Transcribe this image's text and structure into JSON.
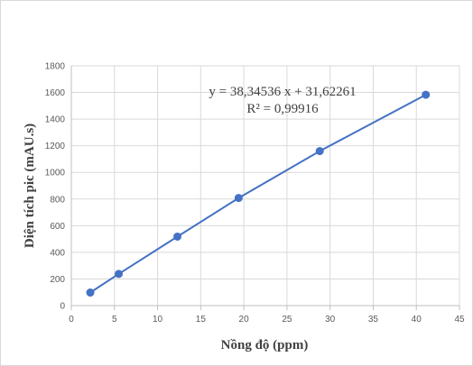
{
  "chart_data": {
    "type": "scatter",
    "xlabel": "Nồng độ (ppm)",
    "ylabel": "Diện tích pic (mAU.s)",
    "xlim": [
      0,
      45
    ],
    "ylim": [
      0,
      1800
    ],
    "x_ticks": [
      "0",
      "5",
      "10",
      "15",
      "20",
      "25",
      "30",
      "35",
      "40",
      "45"
    ],
    "y_ticks": [
      "0",
      "200",
      "400",
      "600",
      "800",
      "1000",
      "1200",
      "1400",
      "1600",
      "1800"
    ],
    "grid": true,
    "series": [
      {
        "x": [
          2.2,
          5.5,
          12.3,
          19.4,
          28.8,
          41.1
        ],
        "y": [
          98,
          238,
          518,
          808,
          1160,
          1583
        ],
        "color": "#4472c4"
      }
    ],
    "trendline": {
      "type": "linear",
      "equation": "y = 38,34536 x + 31,62261",
      "r_squared": "R² = 0,99916"
    }
  }
}
